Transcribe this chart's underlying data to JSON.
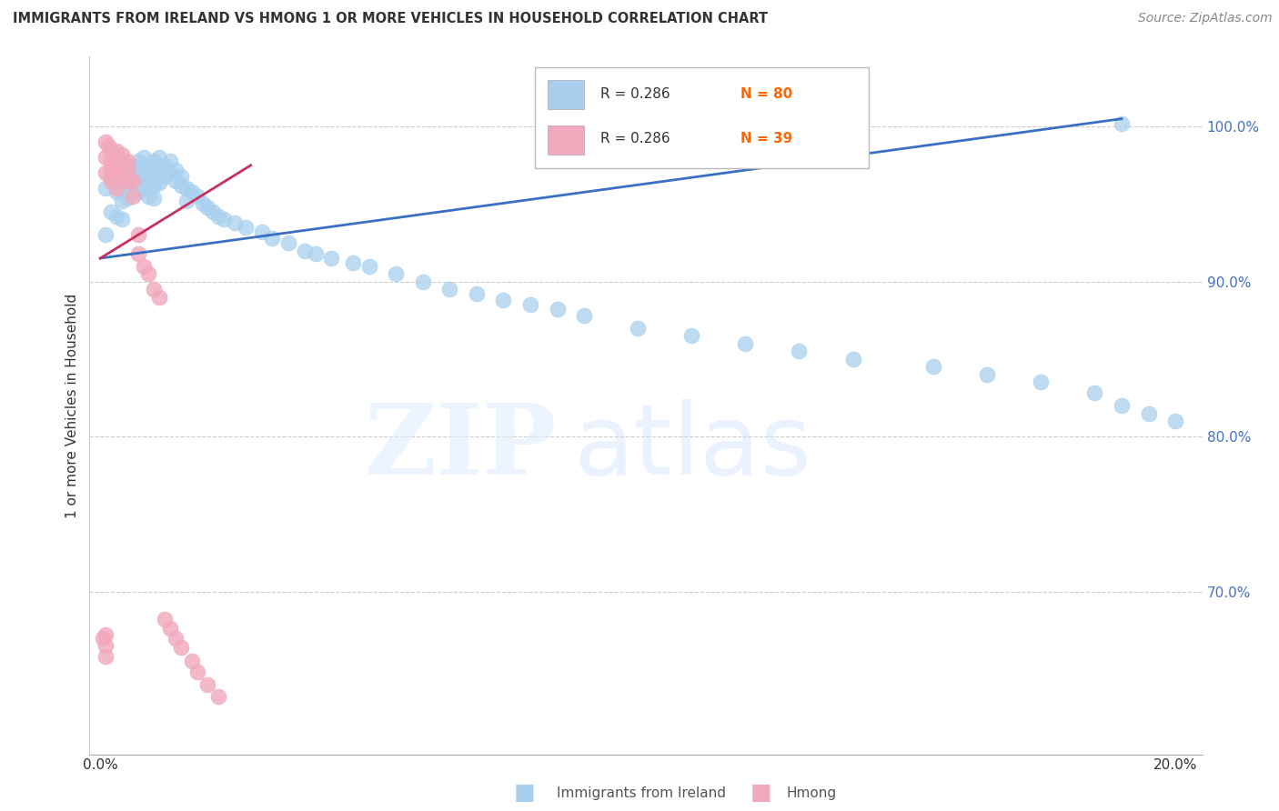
{
  "title": "IMMIGRANTS FROM IRELAND VS HMONG 1 OR MORE VEHICLES IN HOUSEHOLD CORRELATION CHART",
  "source": "Source: ZipAtlas.com",
  "ylabel": "1 or more Vehicles in Household",
  "xlim": [
    -0.002,
    0.205
  ],
  "ylim": [
    0.595,
    1.045
  ],
  "y_ticks": [
    0.7,
    0.8,
    0.9,
    1.0
  ],
  "y_tick_labels": [
    "70.0%",
    "80.0%",
    "90.0%",
    "100.0%"
  ],
  "x_tick_positions": [
    0.0,
    0.05,
    0.1,
    0.15,
    0.2
  ],
  "x_tick_labels": [
    "0.0%",
    "",
    "",
    "",
    "20.0%"
  ],
  "ireland_R": 0.286,
  "ireland_N": 80,
  "hmong_R": 0.286,
  "hmong_N": 39,
  "ireland_color": "#A8D0EE",
  "ireland_line_color": "#3A6FC4",
  "hmong_color": "#F2A8BC",
  "hmong_line_color": "#C83060",
  "background": "#FFFFFF",
  "ireland_line_x0": 0.0,
  "ireland_line_y0": 0.915,
  "ireland_line_x1": 0.19,
  "ireland_line_y1": 1.005,
  "hmong_line_x0": 0.0,
  "hmong_line_y0": 0.915,
  "hmong_line_x1": 0.028,
  "hmong_line_y1": 0.975,
  "ireland_x": [
    0.001,
    0.001,
    0.002,
    0.002,
    0.003,
    0.003,
    0.003,
    0.004,
    0.004,
    0.004,
    0.004,
    0.005,
    0.005,
    0.005,
    0.006,
    0.006,
    0.007,
    0.007,
    0.007,
    0.008,
    0.008,
    0.008,
    0.009,
    0.009,
    0.009,
    0.01,
    0.01,
    0.01,
    0.01,
    0.011,
    0.011,
    0.011,
    0.012,
    0.012,
    0.013,
    0.013,
    0.014,
    0.014,
    0.015,
    0.015,
    0.016,
    0.016,
    0.017,
    0.018,
    0.019,
    0.02,
    0.021,
    0.022,
    0.023,
    0.025,
    0.027,
    0.03,
    0.032,
    0.035,
    0.038,
    0.04,
    0.043,
    0.047,
    0.05,
    0.055,
    0.06,
    0.065,
    0.07,
    0.075,
    0.08,
    0.085,
    0.09,
    0.1,
    0.11,
    0.12,
    0.13,
    0.14,
    0.155,
    0.165,
    0.175,
    0.185,
    0.19,
    0.195,
    0.2,
    0.19
  ],
  "ireland_y": [
    0.96,
    0.93,
    0.968,
    0.945,
    0.97,
    0.958,
    0.942,
    0.972,
    0.962,
    0.952,
    0.94,
    0.974,
    0.964,
    0.954,
    0.975,
    0.965,
    0.978,
    0.968,
    0.958,
    0.98,
    0.97,
    0.96,
    0.975,
    0.965,
    0.955,
    0.978,
    0.97,
    0.962,
    0.954,
    0.98,
    0.972,
    0.964,
    0.975,
    0.968,
    0.978,
    0.97,
    0.972,
    0.965,
    0.968,
    0.962,
    0.96,
    0.952,
    0.958,
    0.955,
    0.95,
    0.948,
    0.945,
    0.942,
    0.94,
    0.938,
    0.935,
    0.932,
    0.928,
    0.925,
    0.92,
    0.918,
    0.915,
    0.912,
    0.91,
    0.905,
    0.9,
    0.895,
    0.892,
    0.888,
    0.885,
    0.882,
    0.878,
    0.87,
    0.865,
    0.86,
    0.855,
    0.85,
    0.845,
    0.84,
    0.835,
    0.828,
    0.82,
    0.815,
    0.81,
    1.002
  ],
  "hmong_x": [
    0.0005,
    0.001,
    0.001,
    0.001,
    0.0015,
    0.002,
    0.002,
    0.002,
    0.002,
    0.003,
    0.003,
    0.003,
    0.003,
    0.003,
    0.004,
    0.004,
    0.004,
    0.005,
    0.005,
    0.005,
    0.006,
    0.006,
    0.007,
    0.007,
    0.008,
    0.009,
    0.01,
    0.011,
    0.012,
    0.013,
    0.014,
    0.015,
    0.017,
    0.018,
    0.02,
    0.022,
    0.001,
    0.001,
    0.001
  ],
  "hmong_y": [
    0.67,
    0.99,
    0.98,
    0.97,
    0.988,
    0.985,
    0.978,
    0.972,
    0.965,
    0.984,
    0.978,
    0.972,
    0.966,
    0.96,
    0.982,
    0.976,
    0.968,
    0.978,
    0.972,
    0.965,
    0.965,
    0.955,
    0.93,
    0.918,
    0.91,
    0.905,
    0.895,
    0.89,
    0.682,
    0.676,
    0.67,
    0.664,
    0.655,
    0.648,
    0.64,
    0.632,
    0.672,
    0.665,
    0.658
  ]
}
